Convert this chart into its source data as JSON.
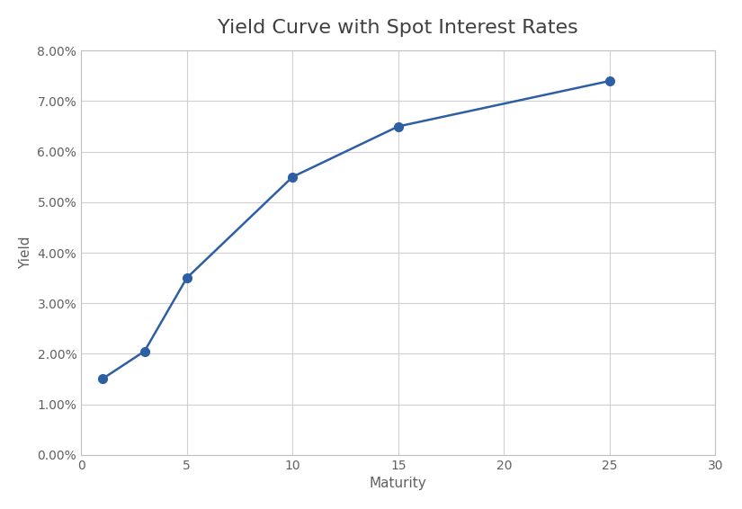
{
  "title": "Yield Curve with Spot Interest Rates",
  "xlabel": "Maturity",
  "ylabel": "Yield",
  "x": [
    1,
    3,
    5,
    10,
    15,
    25
  ],
  "y": [
    0.015,
    0.0205,
    0.035,
    0.055,
    0.065,
    0.074
  ],
  "line_color": "#2e5fa3",
  "marker": "o",
  "marker_color": "#2e5fa3",
  "marker_size": 7,
  "line_width": 1.8,
  "xlim": [
    0,
    30
  ],
  "ylim": [
    0.0,
    0.08
  ],
  "xticks": [
    0,
    5,
    10,
    15,
    20,
    25,
    30
  ],
  "yticks": [
    0.0,
    0.01,
    0.02,
    0.03,
    0.04,
    0.05,
    0.06,
    0.07,
    0.08
  ],
  "grid_color": "#d0d0d0",
  "background_color": "#ffffff",
  "plot_area_color": "#ffffff",
  "title_fontsize": 16,
  "title_color": "#404040",
  "label_fontsize": 11,
  "tick_fontsize": 10,
  "tick_color": "#606060",
  "spine_color": "#c0c0c0",
  "figsize": [
    8.25,
    5.66
  ]
}
